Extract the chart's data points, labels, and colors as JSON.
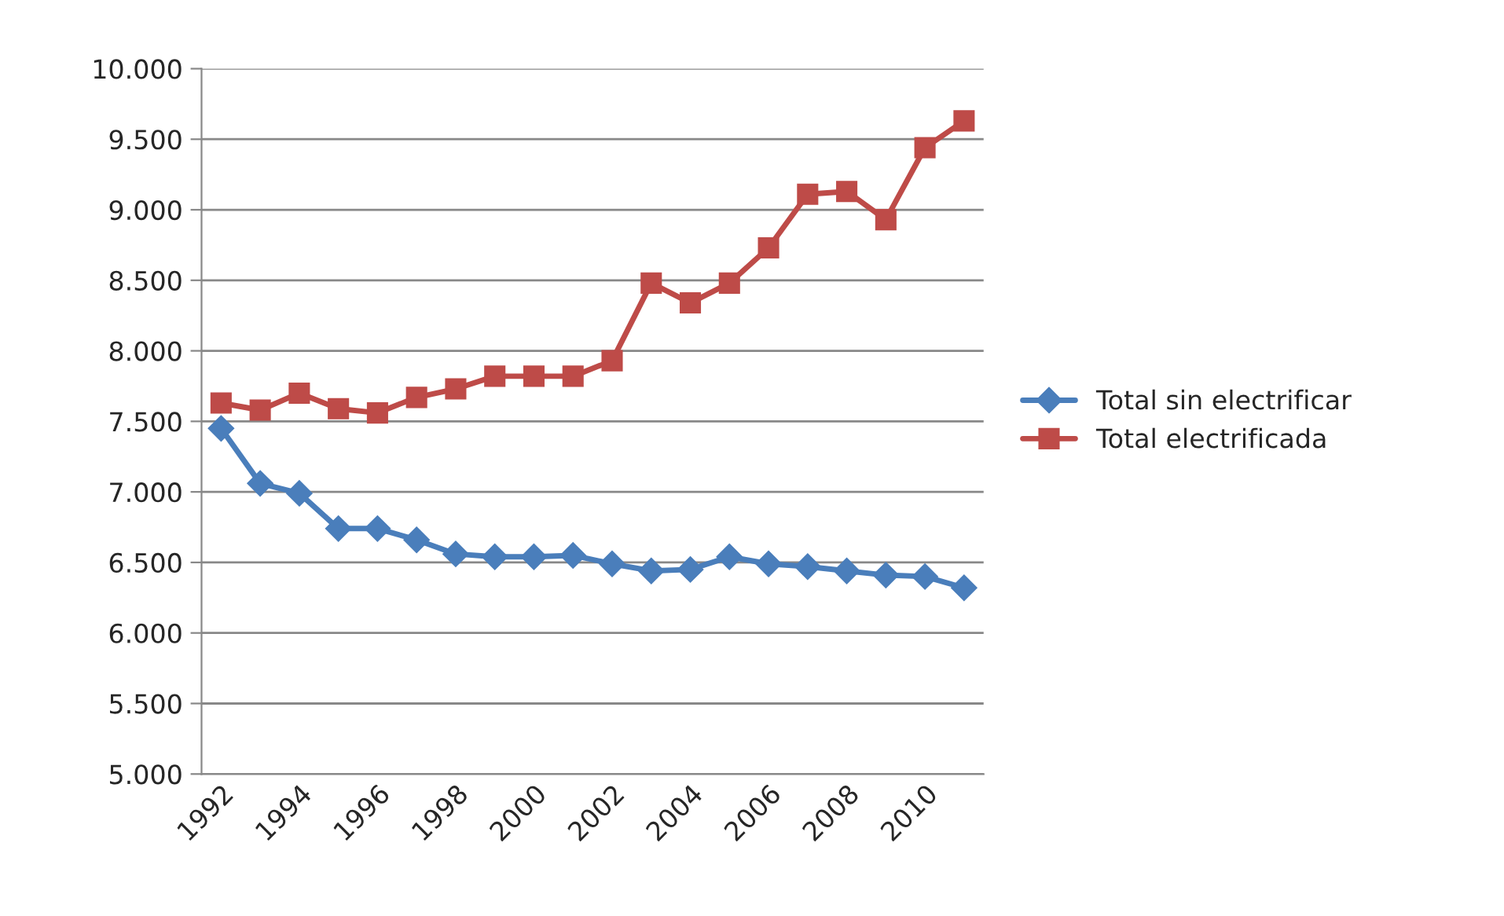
{
  "chart_data": {
    "type": "line",
    "categories": [
      "1992",
      null,
      "1994",
      null,
      "1996",
      null,
      "1998",
      null,
      "2000",
      null,
      "2002",
      null,
      "2004",
      null,
      "2006",
      null,
      "2008",
      null,
      "2010",
      null
    ],
    "series": [
      {
        "name": "Total sin electrificar",
        "color": "#4a7ebb",
        "marker": "diamond",
        "values": [
          7450,
          7060,
          6990,
          6740,
          6740,
          6660,
          6560,
          6540,
          6540,
          6550,
          6490,
          6440,
          6450,
          6540,
          6490,
          6470,
          6440,
          6410,
          6400,
          6320
        ]
      },
      {
        "name": "Total electrificada",
        "color": "#be4b48",
        "marker": "square",
        "values": [
          7630,
          7580,
          7700,
          7590,
          7560,
          7670,
          7730,
          7820,
          7820,
          7820,
          7930,
          8480,
          8340,
          8480,
          8730,
          9110,
          9130,
          8930,
          9440,
          9630
        ]
      }
    ],
    "ylim": [
      5000,
      10000
    ],
    "yticks": [
      {
        "value": 5000,
        "label": "5.000"
      },
      {
        "value": 5500,
        "label": "5.500"
      },
      {
        "value": 6000,
        "label": "6.000"
      },
      {
        "value": 6500,
        "label": "6.500"
      },
      {
        "value": 7000,
        "label": "7.000"
      },
      {
        "value": 7500,
        "label": "7.500"
      },
      {
        "value": 8000,
        "label": "8.000"
      },
      {
        "value": 8500,
        "label": "8.500"
      },
      {
        "value": 9000,
        "label": "9.000"
      },
      {
        "value": 9500,
        "label": "9.500"
      },
      {
        "value": 10000,
        "label": "10.000"
      }
    ],
    "grid": "y",
    "legend": "right",
    "line_style": "solid"
  }
}
